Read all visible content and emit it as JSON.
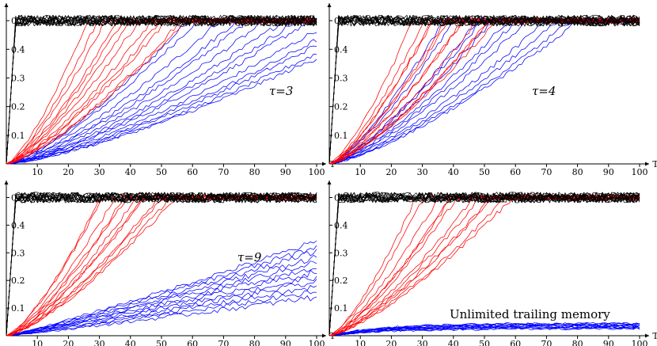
{
  "chart_data": [
    {
      "type": "line",
      "annotation": "τ=3",
      "xticks": [
        10,
        20,
        30,
        40,
        50,
        60,
        70,
        80,
        90,
        100
      ],
      "yticks": [
        0.1,
        0.2,
        0.3,
        0.4,
        0.5
      ],
      "x_axis_label": "T",
      "xlim": [
        0,
        100
      ],
      "ylim": [
        0,
        0.55
      ],
      "series": [
        {
          "color": "#000000",
          "count": 14,
          "plateau_t": 3,
          "level": 0.5,
          "noise": 0.012
        },
        {
          "color": "#ff0000",
          "count": 12,
          "plateau_t": [
            28,
            58
          ],
          "level": 0.5,
          "noise": 0.012
        },
        {
          "color": "#0000ff",
          "count": 14,
          "plateau_t": [
            58,
            125
          ],
          "level": 0.5,
          "noise": 0.012
        }
      ]
    },
    {
      "type": "line",
      "annotation": "τ=4",
      "xticks": [
        10,
        20,
        30,
        40,
        50,
        60,
        70,
        80,
        90,
        100
      ],
      "yticks": [
        0.1,
        0.2,
        0.3,
        0.4,
        0.5
      ],
      "x_axis_label": "T",
      "xlim": [
        0,
        100
      ],
      "ylim": [
        0,
        0.55
      ],
      "series": [
        {
          "color": "#000000",
          "count": 14,
          "plateau_t": 3,
          "level": 0.5,
          "noise": 0.012
        },
        {
          "color": "#ff0000",
          "count": 12,
          "plateau_t": [
            27,
            55
          ],
          "level": 0.5,
          "noise": 0.012
        },
        {
          "color": "#0000ff",
          "count": 12,
          "plateau_t": [
            38,
            80
          ],
          "level": 0.5,
          "noise": 0.012
        }
      ]
    },
    {
      "type": "line",
      "annotation": "τ=9",
      "xticks": [
        10,
        20,
        30,
        40,
        50,
        60,
        70,
        80,
        90,
        100
      ],
      "yticks": [
        0.1,
        0.2,
        0.3,
        0.4,
        0.5
      ],
      "x_axis_label": "T",
      "xlim": [
        0,
        100
      ],
      "ylim": [
        0,
        0.55
      ],
      "series": [
        {
          "color": "#000000",
          "count": 14,
          "plateau_t": 3,
          "level": 0.5,
          "noise": 0.012
        },
        {
          "color": "#ff0000",
          "count": 12,
          "plateau_t": [
            30,
            55
          ],
          "level": 0.5,
          "noise": 0.012
        },
        {
          "color": "#0000ff",
          "count": 12,
          "linear_end": [
            0.14,
            0.34
          ],
          "noise": 0.01
        }
      ]
    },
    {
      "type": "line",
      "annotation": "Unlimited trailing memory",
      "xticks": [
        10,
        20,
        30,
        40,
        50,
        60,
        70,
        80,
        90,
        100
      ],
      "yticks": [
        0.1,
        0.2,
        0.3,
        0.4,
        0.5
      ],
      "x_axis_label": "T",
      "xlim": [
        0,
        100
      ],
      "ylim": [
        0,
        0.55
      ],
      "series": [
        {
          "color": "#000000",
          "count": 14,
          "plateau_t": 3,
          "level": 0.5,
          "noise": 0.012
        },
        {
          "color": "#ff0000",
          "count": 12,
          "plateau_t": [
            30,
            58
          ],
          "level": 0.5,
          "noise": 0.012
        },
        {
          "color": "#0000ff",
          "count": 12,
          "saturating": [
            0.025,
            0.045
          ],
          "noise": 0.004
        }
      ]
    }
  ]
}
